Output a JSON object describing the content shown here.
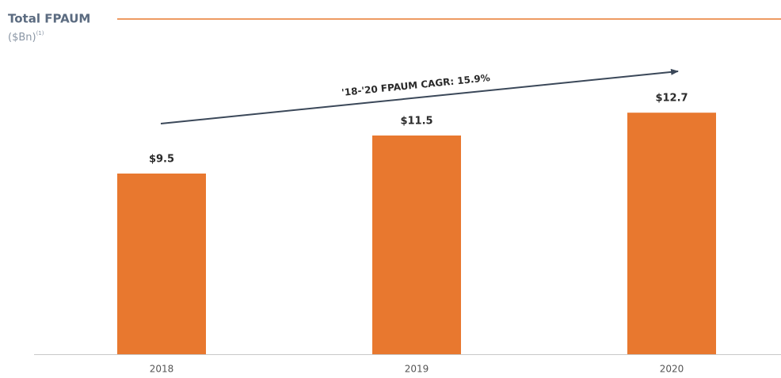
{
  "chart_data": {
    "type": "bar",
    "title": "Total FPAUM",
    "subtitle": "($Bn)",
    "footnote_marker": "(1)",
    "annotation": "'18-'20 FPAUM CAGR: 15.9%",
    "categories": [
      "2018",
      "2019",
      "2020"
    ],
    "values": [
      9.5,
      11.5,
      12.7
    ],
    "value_labels": [
      "$9.5",
      "$11.5",
      "$12.7"
    ],
    "color": "#e8782f",
    "ylim": [
      0,
      18
    ]
  }
}
